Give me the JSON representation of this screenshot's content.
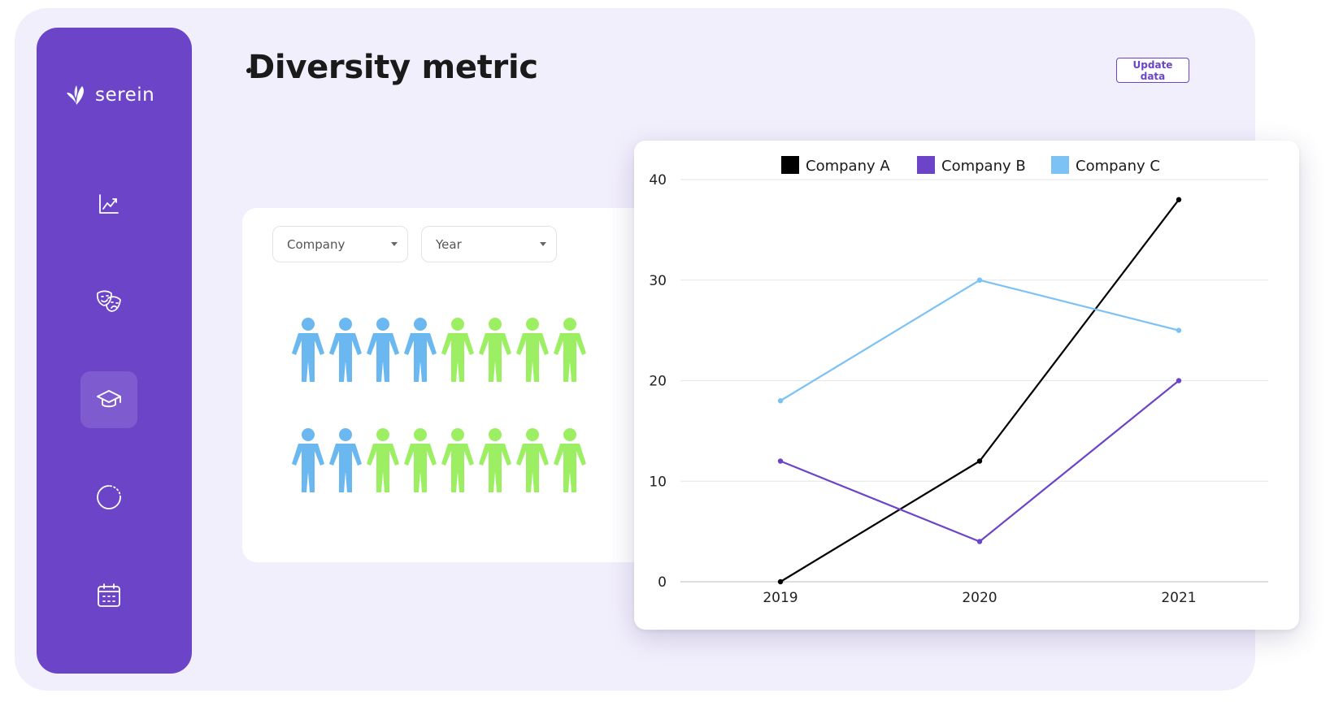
{
  "app": {
    "name": "serein"
  },
  "page": {
    "title": "Diversity metric",
    "update_button": "Update data"
  },
  "sidebar": {
    "items": [
      {
        "icon": "chart-line-icon",
        "active": false
      },
      {
        "icon": "theater-masks-icon",
        "active": false
      },
      {
        "icon": "graduation-cap-icon",
        "active": true
      },
      {
        "icon": "loading-circle-icon",
        "active": false
      },
      {
        "icon": "calendar-icon",
        "active": false
      }
    ]
  },
  "filters": {
    "company": {
      "value": "Company"
    },
    "year": {
      "value": "Year"
    }
  },
  "people": {
    "colors": {
      "group_1": "#6bb8f0",
      "group_2": "#9cef62"
    },
    "rows": [
      {
        "group_1": 4,
        "group_2": 4
      },
      {
        "group_1": 2,
        "group_2": 6
      }
    ]
  },
  "colors": {
    "accent": "#6b44c8",
    "frame": "#f2effd"
  },
  "chart_data": {
    "type": "line",
    "x": [
      "2019",
      "2020",
      "2021"
    ],
    "series": [
      {
        "name": "Company A",
        "color": "#000000",
        "values": [
          0,
          12,
          38
        ]
      },
      {
        "name": "Company B",
        "color": "#6b44c8",
        "values": [
          12,
          4,
          20
        ]
      },
      {
        "name": "Company C",
        "color": "#7cc2f5",
        "values": [
          18,
          30,
          25
        ]
      }
    ],
    "ylim": [
      0,
      40
    ],
    "yticks": [
      0,
      10,
      20,
      30,
      40
    ],
    "grid": true,
    "legend": "top"
  }
}
